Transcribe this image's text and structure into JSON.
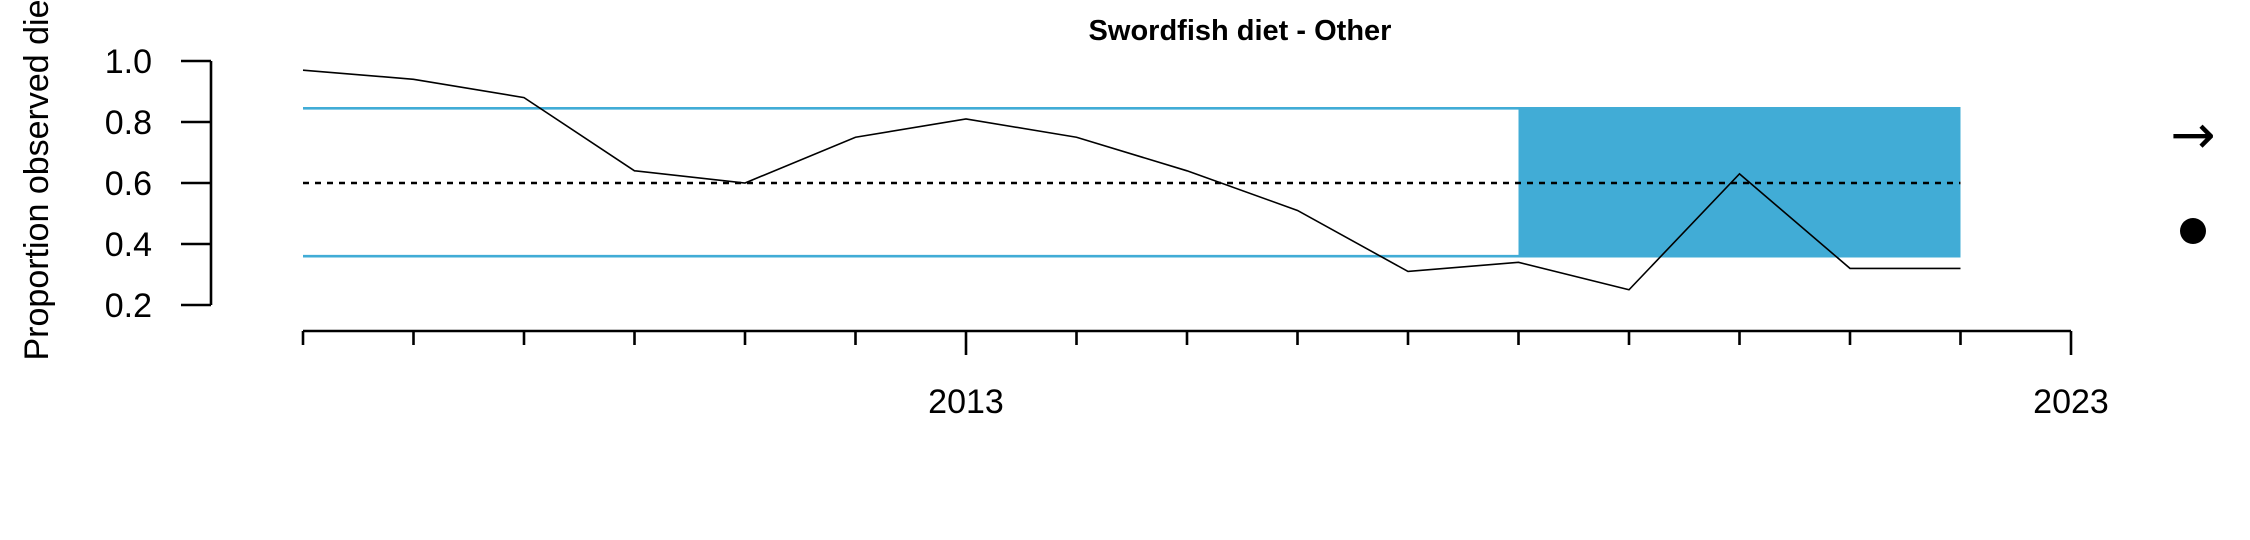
{
  "chart_data": {
    "type": "line",
    "title": "Swordfish diet - Other",
    "ylabel": "Proportion observed die",
    "xlabel": "",
    "x": [
      2007,
      2008,
      2009,
      2010,
      2011,
      2012,
      2013,
      2014,
      2015,
      2016,
      2017,
      2018,
      2019,
      2020,
      2021,
      2022
    ],
    "series": [
      {
        "values": [
          0.97,
          0.94,
          0.88,
          0.64,
          0.6,
          0.75,
          0.81,
          0.75,
          0.64,
          0.51,
          0.31,
          0.34,
          0.25,
          0.63,
          0.32,
          0.32
        ]
      }
    ],
    "mean": 0.6,
    "upper_sd": 0.845,
    "lower_sd": 0.36,
    "highlight_range": [
      2018,
      2022
    ],
    "xlim": [
      2007,
      2023
    ],
    "ylim": [
      0.2,
      1.0
    ],
    "y_ticks": [
      0.2,
      0.4,
      0.6,
      0.8,
      1.0
    ],
    "y_tick_labels": [
      "0.2",
      "0.4",
      "0.6",
      "0.8",
      "1.0"
    ],
    "x_ticks": [
      2007,
      2008,
      2009,
      2010,
      2011,
      2012,
      2013,
      2014,
      2015,
      2016,
      2017,
      2018,
      2019,
      2020,
      2021,
      2022,
      2023
    ],
    "x_tick_labels": [
      {
        "value": 2013,
        "label": "2013"
      },
      {
        "value": 2023,
        "label": "2023"
      }
    ],
    "colors": {
      "line": "#000000",
      "band": "#41acd6",
      "highlight": "#41acd6",
      "mean": "#000000"
    },
    "grid": false,
    "legend": "none",
    "indicators": {
      "trend_icon": "right-arrow-icon",
      "trend_symbol": "→",
      "status_icon": "filled-circle-icon"
    }
  }
}
